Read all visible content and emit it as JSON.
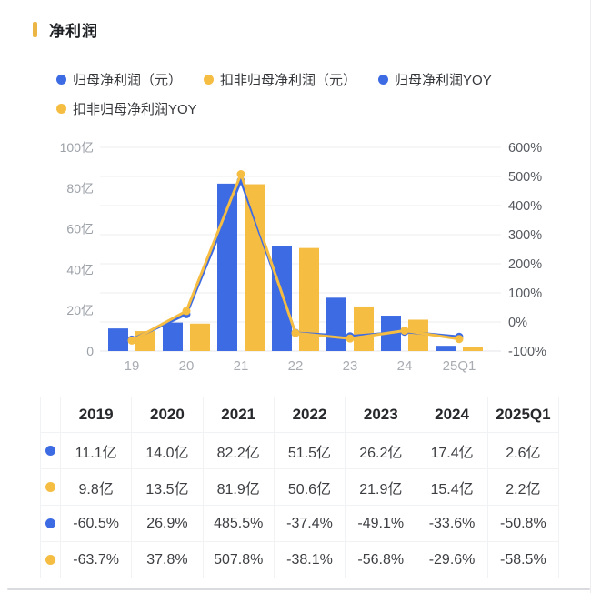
{
  "title": "净利润",
  "colors": {
    "blue": "#3D6BE3",
    "yellow": "#F5BD42",
    "grid": "#EDEDEE",
    "axis_left_text": "#9CA1A8",
    "axis_right_text": "#55595F",
    "axis_x_text": "#A8ACB2",
    "accent_bar": "#ECB647"
  },
  "legend": {
    "items": [
      {
        "id": "net-profit",
        "label": "归母净利润（元）",
        "color": "#3D6BE3",
        "row": 1
      },
      {
        "id": "deducted-net-profit",
        "label": "扣非归母净利润（元）",
        "color": "#F5BD42",
        "row": 1
      },
      {
        "id": "net-profit-yoy",
        "label": "归母净利润YOY",
        "color": "#3D6BE3",
        "row": 1
      },
      {
        "id": "deducted-net-profit-yoy",
        "label": "扣非归母净利润YOY",
        "color": "#F5BD42",
        "row": 2
      }
    ]
  },
  "chart_data": {
    "type": "combo: grouped bars (left axis) + lines with markers (right axis)",
    "title": "净利润",
    "categories": [
      "19",
      "20",
      "21",
      "22",
      "23",
      "24",
      "25Q1"
    ],
    "bar_series": [
      {
        "id": "net-profit",
        "name": "归母净利润（元）",
        "unit": "亿",
        "color": "#3D6BE3",
        "values": [
          11.1,
          14.0,
          82.2,
          51.5,
          26.2,
          17.4,
          2.6
        ]
      },
      {
        "id": "deducted-net-profit",
        "name": "扣非归母净利润（元）",
        "unit": "亿",
        "color": "#F5BD42",
        "values": [
          9.8,
          13.5,
          81.9,
          50.6,
          21.9,
          15.4,
          2.2
        ]
      }
    ],
    "line_series": [
      {
        "id": "net-profit-yoy",
        "name": "归母净利润YOY",
        "unit": "%",
        "color": "#3D6BE3",
        "values": [
          -60.5,
          26.9,
          485.5,
          -37.4,
          -49.1,
          -33.6,
          -50.8
        ]
      },
      {
        "id": "deducted-net-profit-yoy",
        "name": "扣非归母净利润YOY",
        "unit": "%",
        "color": "#F5BD42",
        "values": [
          -63.7,
          37.8,
          507.8,
          -38.1,
          -56.8,
          -29.6,
          -58.5
        ]
      }
    ],
    "left_axis": {
      "min": 0,
      "max": 100,
      "tick_values": [
        0,
        20,
        40,
        60,
        80,
        100
      ],
      "tick_labels": [
        "0",
        "20亿",
        "40亿",
        "60亿",
        "80亿",
        "100亿"
      ]
    },
    "right_axis": {
      "min": -100,
      "max": 600,
      "tick_labels_top_to_bottom": [
        "600%",
        "500%",
        "400%",
        "300%",
        "200%",
        "100%",
        "0%",
        "-100%"
      ]
    },
    "grid": true,
    "legend_position": "top"
  },
  "table": {
    "headers": [
      "2019",
      "2020",
      "2021",
      "2022",
      "2023",
      "2024",
      "2025Q1"
    ],
    "rows": [
      {
        "series_id": "net-profit",
        "dot_color": "#3D6BE3",
        "cells": [
          "11.1亿",
          "14.0亿",
          "82.2亿",
          "51.5亿",
          "26.2亿",
          "17.4亿",
          "2.6亿"
        ]
      },
      {
        "series_id": "deducted-net-profit",
        "dot_color": "#F5BD42",
        "cells": [
          "9.8亿",
          "13.5亿",
          "81.9亿",
          "50.6亿",
          "21.9亿",
          "15.4亿",
          "2.2亿"
        ]
      },
      {
        "series_id": "net-profit-yoy",
        "dot_color": "#3D6BE3",
        "cells": [
          "-60.5%",
          "26.9%",
          "485.5%",
          "-37.4%",
          "-49.1%",
          "-33.6%",
          "-50.8%"
        ]
      },
      {
        "series_id": "deducted-net-profit-yoy",
        "dot_color": "#F5BD42",
        "cells": [
          "-63.7%",
          "37.8%",
          "507.8%",
          "-38.1%",
          "-56.8%",
          "-29.6%",
          "-58.5%"
        ]
      }
    ]
  }
}
